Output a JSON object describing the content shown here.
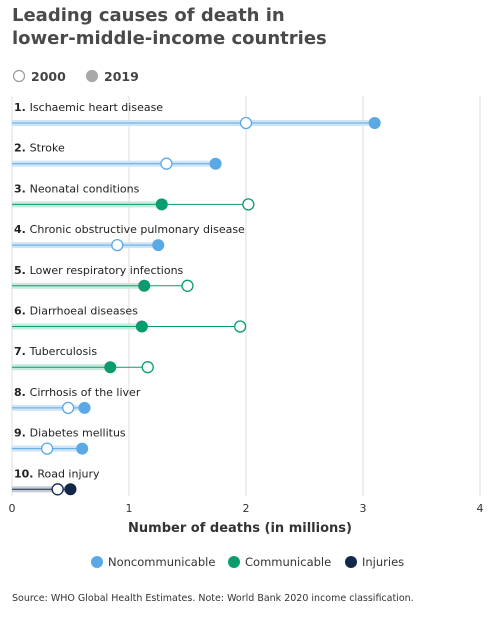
{
  "chart_data": {
    "type": "dumbbell",
    "title_lines": [
      "Leading causes of death in",
      "lower-middle-income countries"
    ],
    "year_legend": [
      {
        "label": "2000",
        "style": "open"
      },
      {
        "label": "2019",
        "style": "filled"
      }
    ],
    "xlabel": "Number of deaths (in millions)",
    "xlim": [
      0,
      4
    ],
    "xticks": [
      "0",
      "1",
      "2",
      "3",
      "4"
    ],
    "xtick_values": [
      0,
      1,
      2,
      3,
      4
    ],
    "categories": [
      {
        "rank": "1.",
        "name": "Ischaemic heart disease",
        "group": "Noncommunicable",
        "v2000": 2.0,
        "v2019": 3.1
      },
      {
        "rank": "2.",
        "name": "Stroke",
        "group": "Noncommunicable",
        "v2000": 1.32,
        "v2019": 1.74
      },
      {
        "rank": "3.",
        "name": "Neonatal conditions",
        "group": "Communicable",
        "v2000": 2.02,
        "v2019": 1.28
      },
      {
        "rank": "4.",
        "name": "Chronic obstructive pulmonary disease",
        "group": "Noncommunicable",
        "v2000": 0.9,
        "v2019": 1.25
      },
      {
        "rank": "5.",
        "name": "Lower respiratory infections",
        "group": "Communicable",
        "v2000": 1.5,
        "v2019": 1.13
      },
      {
        "rank": "6.",
        "name": "Diarrhoeal diseases",
        "group": "Communicable",
        "v2000": 1.95,
        "v2019": 1.11
      },
      {
        "rank": "7.",
        "name": "Tuberculosis",
        "group": "Communicable",
        "v2000": 1.16,
        "v2019": 0.84
      },
      {
        "rank": "8.",
        "name": "Cirrhosis of the liver",
        "group": "Noncommunicable",
        "v2000": 0.48,
        "v2019": 0.62
      },
      {
        "rank": "9.",
        "name": "Diabetes mellitus",
        "group": "Noncommunicable",
        "v2000": 0.3,
        "v2019": 0.6
      },
      {
        "rank": "10.",
        "name": "Road injury",
        "group": "Injuries",
        "v2000": 0.39,
        "v2019": 0.5
      }
    ],
    "groups": [
      {
        "name": "Noncommunicable",
        "color": "#5aa9e6",
        "light": "#cfe5f7"
      },
      {
        "name": "Communicable",
        "color": "#0a9b6e",
        "light": "#c6eadb"
      },
      {
        "name": "Injuries",
        "color": "#12284b",
        "light": "#c5cad3"
      }
    ],
    "grid": true,
    "legend_placement": "bottom",
    "source": "Source: WHO Global Health Estimates. Note: World Bank 2020 income classification."
  }
}
